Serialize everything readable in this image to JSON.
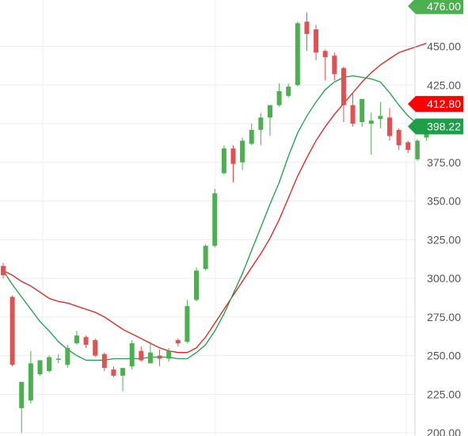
{
  "chart_data": {
    "type": "candlestick",
    "title": "",
    "xlabel": "",
    "ylabel": "",
    "ylim": [
      198,
      480
    ],
    "y_ticks": [
      "200.00",
      "225.00",
      "250.00",
      "275.00",
      "300.00",
      "325.00",
      "350.00",
      "375.00",
      "400.00",
      "425.00",
      "450.00"
    ],
    "price_tags": [
      {
        "label": "476.00",
        "value": 476.0,
        "color": "#4caf50"
      },
      {
        "label": "412.80",
        "value": 412.8,
        "color": "#ff0000"
      },
      {
        "label": "398.22",
        "value": 398.22,
        "color": "#1e9e48"
      }
    ],
    "colors": {
      "up": "#4caf50",
      "down": "#e05252",
      "ma_fast": "#1e9e48",
      "ma_slow": "#e02020",
      "grid": "#ececec"
    },
    "candles": [
      [
        308,
        310,
        300,
        302
      ],
      [
        288,
        289,
        243,
        244
      ],
      [
        216,
        231,
        200,
        233
      ],
      [
        221,
        253,
        219,
        245
      ],
      [
        238,
        247,
        237,
        247
      ],
      [
        240,
        250,
        239,
        249
      ],
      [
        248,
        251,
        245,
        248
      ],
      [
        244,
        257,
        242,
        255
      ],
      [
        258,
        266,
        257,
        263
      ],
      [
        262,
        263,
        255,
        257
      ],
      [
        260,
        261,
        249,
        250
      ],
      [
        251,
        252,
        240,
        242
      ],
      [
        241,
        243,
        236,
        237
      ],
      [
        237,
        242,
        227,
        242
      ],
      [
        243,
        260,
        241,
        258
      ],
      [
        253,
        256,
        246,
        247
      ],
      [
        245,
        259,
        246,
        252
      ],
      [
        250,
        254,
        243,
        248
      ],
      [
        248,
        255,
        246,
        253
      ],
      [
        260,
        261,
        256,
        258
      ],
      [
        259,
        286,
        258,
        282
      ],
      [
        286,
        307,
        285,
        305
      ],
      [
        306,
        322,
        305,
        321
      ],
      [
        321,
        358,
        320,
        355
      ],
      [
        368,
        386,
        367,
        384
      ],
      [
        384,
        386,
        362,
        374
      ],
      [
        375,
        391,
        370,
        389
      ],
      [
        387,
        400,
        386,
        396
      ],
      [
        396,
        407,
        386,
        404
      ],
      [
        404,
        412,
        392,
        412
      ],
      [
        412,
        426,
        411,
        421
      ],
      [
        418,
        426,
        417,
        424
      ],
      [
        425,
        466,
        424,
        465
      ],
      [
        466,
        472,
        447,
        458
      ],
      [
        461,
        464,
        441,
        446
      ],
      [
        447,
        448,
        428,
        443
      ],
      [
        444,
        446,
        428,
        432
      ],
      [
        436,
        437,
        401,
        412
      ],
      [
        412,
        420,
        398,
        400
      ],
      [
        401,
        414,
        398,
        416
      ],
      [
        400,
        407,
        380,
        402
      ],
      [
        403,
        414,
        397,
        405
      ],
      [
        404,
        410,
        389,
        392
      ],
      [
        396,
        397,
        383,
        386
      ],
      [
        388,
        389,
        381,
        383
      ],
      [
        377,
        390,
        376,
        389
      ],
      [
        391,
        403,
        389,
        398
      ]
    ],
    "ma_fast": [
      305,
      296,
      288,
      280,
      272,
      266,
      259,
      254,
      250,
      247,
      247,
      247,
      248,
      248,
      248,
      248,
      249,
      249,
      249,
      248,
      248,
      252,
      257,
      266,
      277,
      290,
      303,
      318,
      333,
      348,
      362,
      379,
      394,
      405,
      414,
      422,
      427,
      430,
      431,
      430,
      429,
      427,
      420,
      412,
      405,
      400,
      398
    ],
    "ma_slow": [
      305,
      302,
      298,
      295,
      291,
      287,
      285,
      284,
      282,
      280,
      278,
      275,
      271,
      267,
      264,
      261,
      258,
      255,
      253,
      252,
      252,
      255,
      262,
      271,
      280,
      289,
      298,
      307,
      316,
      326,
      338,
      352,
      366,
      378,
      389,
      398,
      406,
      413,
      420,
      427,
      433,
      438,
      442,
      446,
      448,
      450,
      452
    ]
  }
}
